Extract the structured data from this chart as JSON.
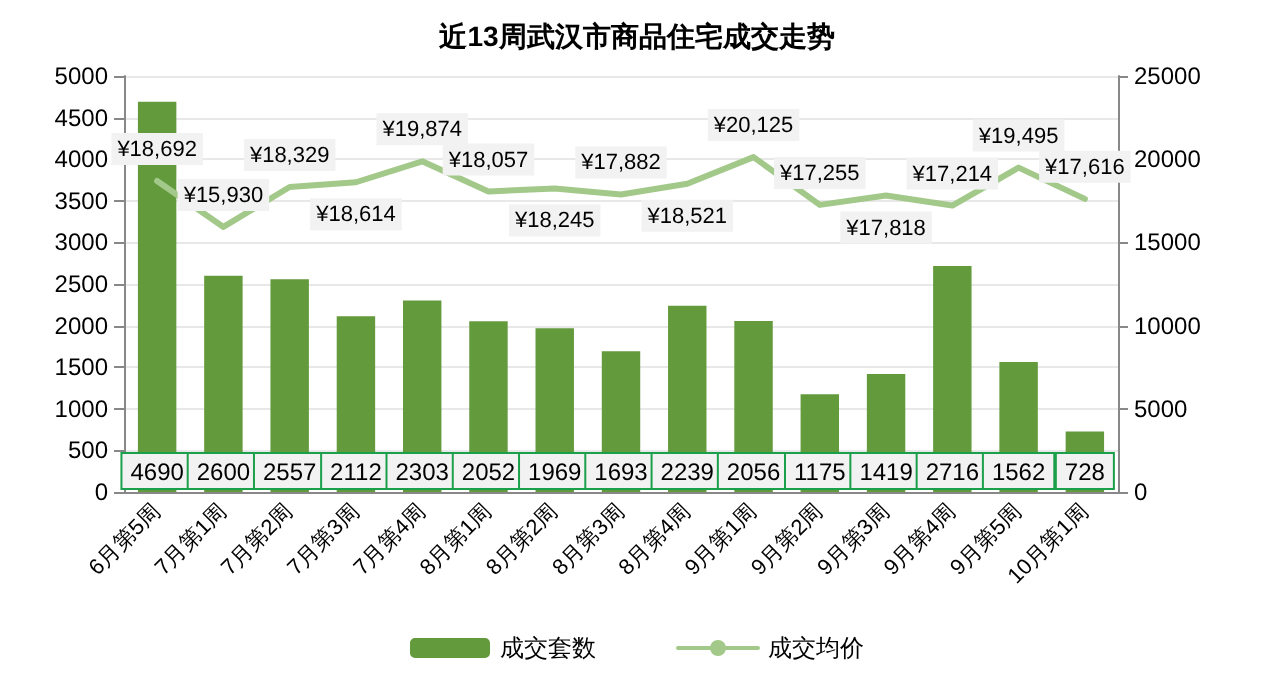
{
  "chart_data": {
    "type": "bar",
    "title": "近13周武汉市商品住宅成交走势",
    "categories": [
      "6月第5周",
      "7月第1周",
      "7月第2周",
      "7月第3周",
      "7月第4周",
      "8月第1周",
      "8月第2周",
      "8月第3周",
      "8月第4周",
      "9月第1周",
      "9月第2周",
      "9月第3周",
      "9月第4周",
      "9月第5周",
      "10月第1周"
    ],
    "series": [
      {
        "name": "成交套数",
        "color": "#629a3c",
        "values": [
          4690,
          2600,
          2557,
          2112,
          2303,
          2052,
          1969,
          1693,
          2239,
          2056,
          1175,
          1419,
          2716,
          1562,
          728
        ],
        "data_labels": true
      },
      {
        "name": "成交均价",
        "type": "line",
        "axis": "y2",
        "color": "#a3c98a",
        "values": [
          18692,
          15930,
          18329,
          18614,
          19874,
          18057,
          18245,
          17882,
          18521,
          20125,
          17255,
          17818,
          17214,
          19495,
          17616
        ],
        "value_labels": [
          "¥18,692",
          "¥15,930",
          "¥18,329",
          "¥18,614",
          "¥19,874",
          "¥18,057",
          "¥18,245",
          "¥17,882",
          "¥18,521",
          "¥20,125",
          "¥17,255",
          "¥17,818",
          "¥17,214",
          "¥19,495",
          "¥17,616"
        ]
      }
    ],
    "ylim": [
      0,
      5000
    ],
    "yticks": [
      0,
      500,
      1000,
      1500,
      2000,
      2500,
      3000,
      3500,
      4000,
      4500,
      5000
    ],
    "y2lim": [
      0,
      25000
    ],
    "y2ticks": [
      0,
      5000,
      10000,
      15000,
      20000,
      25000
    ],
    "grid": "y",
    "legend": "bottom",
    "marker": "none",
    "line_style": "solid"
  }
}
